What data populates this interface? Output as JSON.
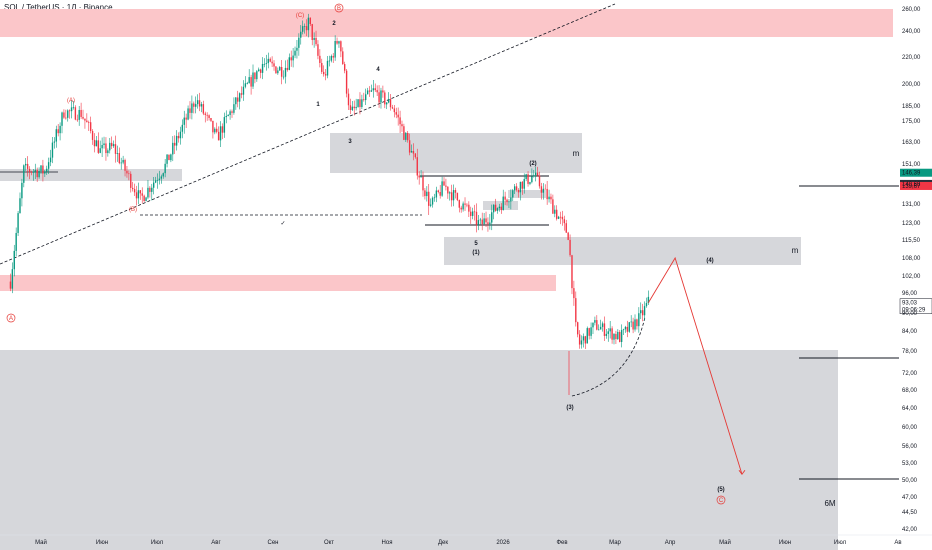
{
  "header": {
    "title": "SOL / TetherUS · 1Д · Binance"
  },
  "colors": {
    "bull": "#089981",
    "bear": "#f23645",
    "zone_grey": "#d6d7db",
    "zone_red": "#fbc6c9",
    "wave_red": "#e53935",
    "line": "#131722"
  },
  "chart_data": {
    "type": "candlestick",
    "title": "SOL / TetherUS · 1Д · Binance",
    "y_scale": "log",
    "y_ticks": [
      "260,00",
      "240,00",
      "220,00",
      "200,00",
      "185,00",
      "175,00",
      "163,00",
      "151,00",
      "131,00",
      "123,00",
      "115,50",
      "108,00",
      "102,00",
      "96,00",
      "90,00",
      "84,00",
      "78,00",
      "72,00",
      "68,00",
      "64,00",
      "60,00",
      "56,00",
      "53,00",
      "50,00",
      "47,00",
      "44,50",
      "42,00"
    ],
    "y_tick_values": [
      260,
      240,
      220,
      200,
      185,
      175,
      163,
      151,
      131,
      123,
      115.5,
      108,
      102,
      96,
      90,
      84,
      78,
      72,
      68,
      64,
      60,
      56,
      53,
      50,
      47,
      44.5,
      42
    ],
    "x_ticks": [
      "Май",
      "Июн",
      "Июл",
      "Авг",
      "Сен",
      "Окт",
      "Ноя",
      "Дек",
      "2026",
      "Фев",
      "Мар",
      "Апр",
      "Май",
      "Июн",
      "Июл",
      "Ав"
    ],
    "price_labels": [
      {
        "text": "146,39",
        "value": 146.39,
        "color": "#089981"
      },
      {
        "text": "140,68",
        "value": 140.68,
        "color": "#2a2e39"
      },
      {
        "text": "139,67",
        "value": 139.67,
        "color": "#f23645"
      },
      {
        "text": "93,03",
        "sub": "09:06:29",
        "value": 93.03,
        "color": "#131722"
      }
    ],
    "zone_labels": [
      "m",
      "m",
      "6M"
    ],
    "wave_labels_black": [
      "2",
      "1",
      "3",
      "4",
      "5",
      "(1)",
      "(2)",
      "(3)",
      "(4)",
      "(5)"
    ],
    "wave_labels_red": [
      "(A)",
      "(B)",
      "(C)",
      "A",
      "B",
      "C"
    ],
    "annotations": [
      "✓"
    ],
    "series": [
      {
        "name": "SOL/USDT",
        "anchors": [
          [
            "2025-04-15",
            100
          ],
          [
            "2025-04-22",
            148
          ],
          [
            "2025-05-03",
            147
          ],
          [
            "2025-05-13",
            181
          ],
          [
            "2025-05-22",
            180
          ],
          [
            "2025-06-01",
            158
          ],
          [
            "2025-06-08",
            160
          ],
          [
            "2025-06-22",
            133
          ],
          [
            "2025-07-05",
            150
          ],
          [
            "2025-07-21",
            190
          ],
          [
            "2025-08-01",
            165
          ],
          [
            "2025-08-10",
            185
          ],
          [
            "2025-08-25",
            215
          ],
          [
            "2025-09-05",
            210
          ],
          [
            "2025-09-18",
            248
          ],
          [
            "2025-09-26",
            205
          ],
          [
            "2025-10-04",
            236
          ],
          [
            "2025-10-10",
            180
          ],
          [
            "2025-10-22",
            195
          ],
          [
            "2025-11-01",
            185
          ],
          [
            "2025-11-10",
            160
          ],
          [
            "2025-11-21",
            130
          ],
          [
            "2025-11-28",
            140
          ],
          [
            "2025-12-17",
            122
          ],
          [
            "2026-01-06",
            140
          ],
          [
            "2026-01-14",
            145
          ],
          [
            "2026-01-24",
            130
          ],
          [
            "2026-02-01",
            118
          ],
          [
            "2026-02-05",
            85
          ],
          [
            "2026-02-07",
            80
          ],
          [
            "2026-02-15",
            86
          ],
          [
            "2026-02-28",
            82
          ],
          [
            "2026-03-10",
            88
          ],
          [
            "2026-03-15",
            93.03
          ]
        ]
      }
    ],
    "projection": [
      [
        "2026-03-15",
        93.03
      ],
      [
        "2026-03-29",
        108
      ],
      [
        "2026-05-03",
        51
      ]
    ]
  }
}
